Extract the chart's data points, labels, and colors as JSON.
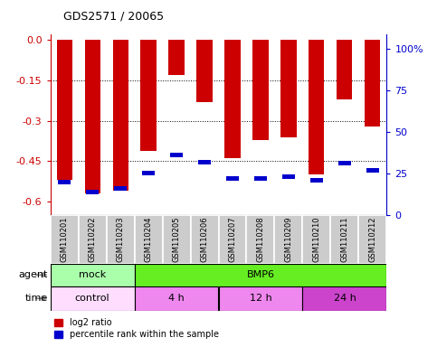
{
  "title": "GDS2571 / 20065",
  "samples": [
    "GSM110201",
    "GSM110202",
    "GSM110203",
    "GSM110204",
    "GSM110205",
    "GSM110206",
    "GSM110207",
    "GSM110208",
    "GSM110209",
    "GSM110210",
    "GSM110211",
    "GSM110212"
  ],
  "log2_ratio": [
    -0.52,
    -0.57,
    -0.56,
    -0.41,
    -0.13,
    -0.23,
    -0.44,
    -0.37,
    -0.36,
    -0.5,
    -0.22,
    -0.32
  ],
  "percentile": [
    20,
    14,
    16,
    25,
    36,
    32,
    22,
    22,
    23,
    21,
    31,
    27
  ],
  "ylim_left": [
    -0.65,
    0.02
  ],
  "yticks_left": [
    0.0,
    -0.15,
    -0.3,
    -0.45,
    -0.6
  ],
  "ylim_right": [
    0,
    108.3
  ],
  "yticks_right": [
    0,
    25,
    50,
    75,
    100
  ],
  "bar_color": "#cc0000",
  "percentile_color": "#0000cc",
  "bar_width": 0.55,
  "agent_row": [
    {
      "label": "mock",
      "start": 0,
      "end": 3,
      "color": "#aaffaa"
    },
    {
      "label": "BMP6",
      "start": 3,
      "end": 12,
      "color": "#66ee22"
    }
  ],
  "time_row": [
    {
      "label": "control",
      "start": 0,
      "end": 3,
      "color": "#ffddff"
    },
    {
      "label": "4 h",
      "start": 3,
      "end": 6,
      "color": "#ee88ee"
    },
    {
      "label": "12 h",
      "start": 6,
      "end": 9,
      "color": "#ee88ee"
    },
    {
      "label": "24 h",
      "start": 9,
      "end": 12,
      "color": "#cc44cc"
    }
  ],
  "legend_red_label": "log2 ratio",
  "legend_blue_label": "percentile rank within the sample",
  "left_axis_color": "#cc0000",
  "right_axis_color": "#0000cc",
  "bg_color": "#ffffff",
  "label_area_color": "#cccccc",
  "agent_label": "agent",
  "time_label": "time"
}
